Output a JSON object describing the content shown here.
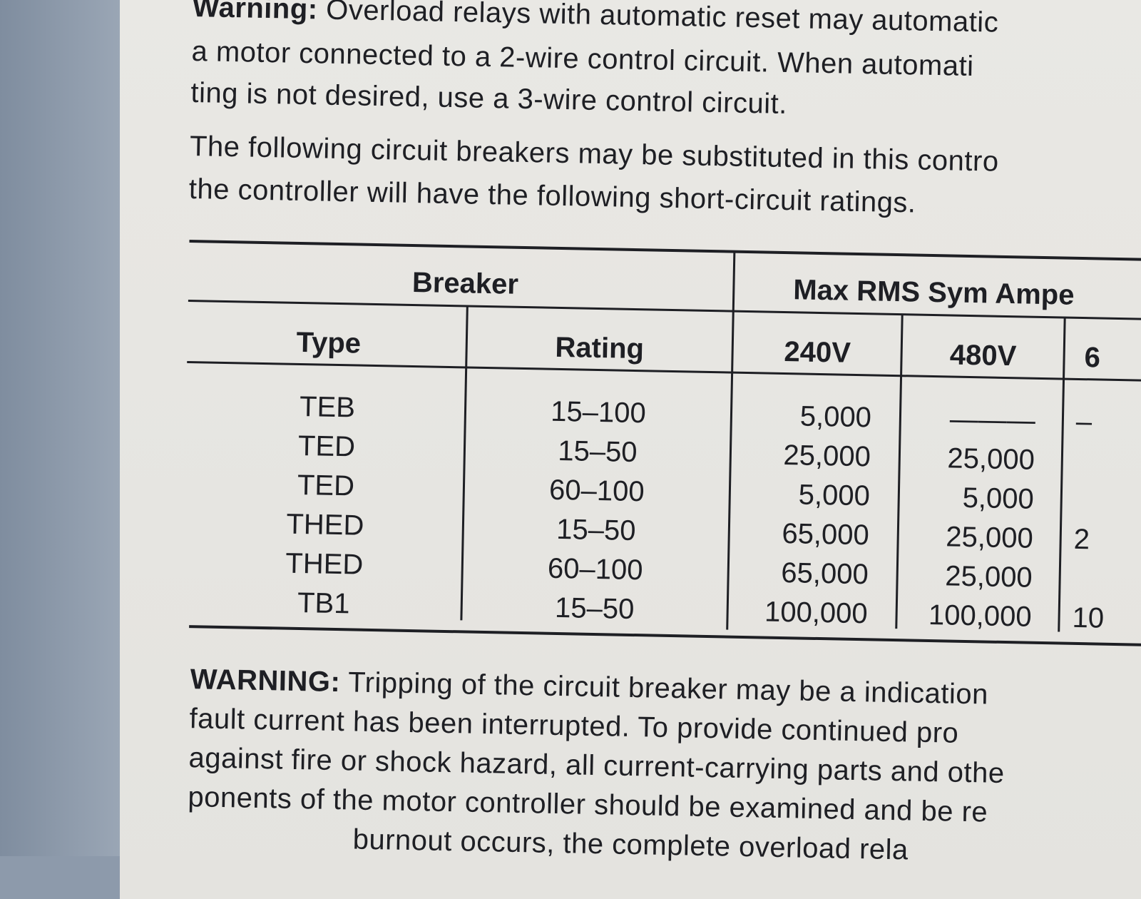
{
  "warning1": {
    "label": "Warning:",
    "lines": [
      " Overload relays with automatic reset may automatic",
      "a motor connected to a 2-wire control circuit. When automati",
      "ting is not desired, use a 3-wire control circuit."
    ]
  },
  "intro": [
    "The following circuit breakers may be substituted in this contro",
    "the controller will have the following short-circuit ratings."
  ],
  "table": {
    "group_headers": [
      "Breaker",
      "Max RMS Sym Ampe"
    ],
    "columns": [
      "Type",
      "Rating",
      "240V",
      "480V",
      "6"
    ],
    "rows": [
      [
        "TEB",
        "15–100",
        "5,000",
        "———",
        "–"
      ],
      [
        "TED",
        "15–50",
        "25,000",
        "25,000",
        ""
      ],
      [
        "TED",
        "60–100",
        "5,000",
        "5,000",
        ""
      ],
      [
        "THED",
        "15–50",
        "65,000",
        "25,000",
        "2"
      ],
      [
        "THED",
        "60–100",
        "65,000",
        "25,000",
        ""
      ],
      [
        "TB1",
        "15–50",
        "100,000",
        "100,000",
        "10"
      ]
    ]
  },
  "warning2": {
    "label": "WARNING:",
    "lines": [
      " Tripping of the circuit breaker may be a indication",
      "fault current has been interrupted. To provide continued pro",
      "against fire or shock hazard, all current-carrying parts and othe",
      "ponents of the motor controller should be examined and be re",
      "                    burnout occurs, the complete overload rela"
    ]
  }
}
